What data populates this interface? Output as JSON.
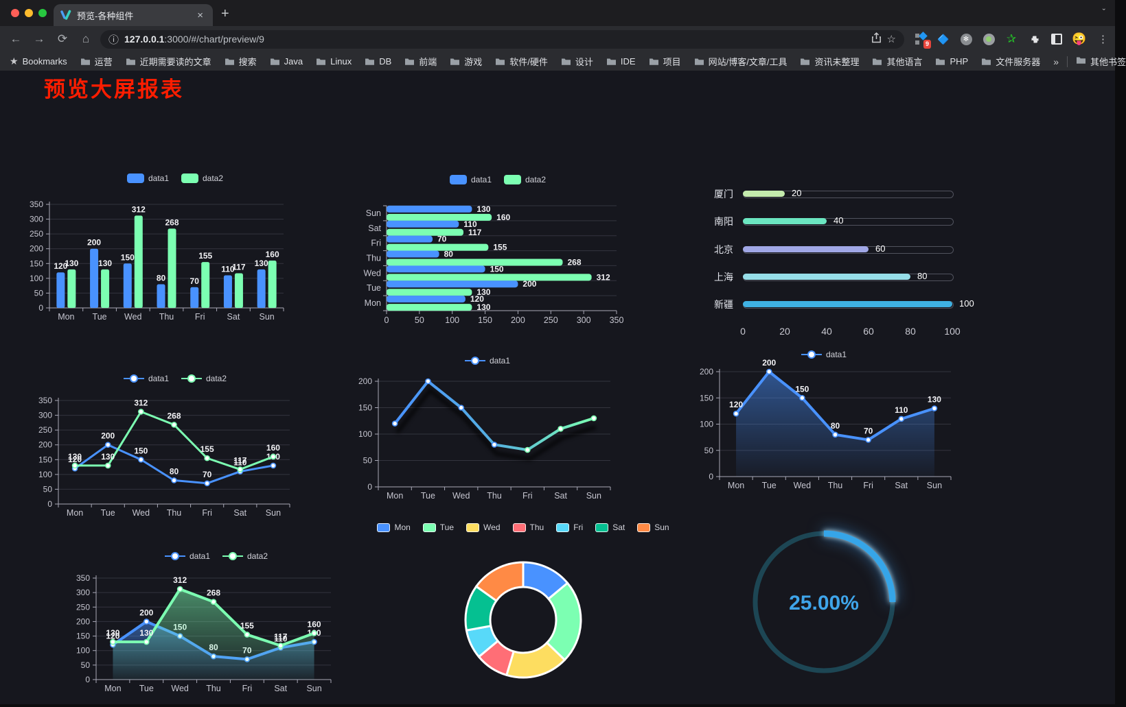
{
  "browser": {
    "tab": {
      "title": "预览-各种组件"
    },
    "url": {
      "host": "127.0.0.1",
      "path": ":3000/#/chart/preview/9"
    },
    "bookmarks_label": "Bookmarks",
    "bookmarks": [
      "运营",
      "近期需要读的文章",
      "搜索",
      "Java",
      "Linux",
      "DB",
      "前端",
      "游戏",
      "软件/硬件",
      "设计",
      "IDE",
      "项目",
      "网站/博客/文章/工具",
      "资讯未整理",
      "其他语言",
      "PHP",
      "文件服务器"
    ],
    "overflow": "»",
    "other_bookmarks": "其他书签",
    "extension_badge": "9"
  },
  "page": {
    "title": "预览大屏报表",
    "title_color": "#fd1d00",
    "background": "#16171e"
  },
  "chart_data": [
    {
      "id": "bar-vertical",
      "type": "bar",
      "categories": [
        "Mon",
        "Tue",
        "Wed",
        "Thu",
        "Fri",
        "Sat",
        "Sun"
      ],
      "series": [
        {
          "name": "data1",
          "color": "#4992ff",
          "values": [
            120,
            200,
            150,
            80,
            70,
            110,
            130
          ]
        },
        {
          "name": "data2",
          "color": "#7cffb2",
          "values": [
            130,
            130,
            312,
            268,
            155,
            117,
            160
          ]
        }
      ],
      "ylim": [
        0,
        350
      ],
      "yticks": [
        0,
        50,
        100,
        150,
        200,
        250,
        300,
        350
      ],
      "legend": [
        "data1",
        "data2"
      ],
      "value_labels": true,
      "grid": true,
      "legend_position": "top"
    },
    {
      "id": "bar-horizontal",
      "type": "hbar",
      "categories_top_to_bottom": [
        "Sun",
        "Sat",
        "Fri",
        "Thu",
        "Wed",
        "Tue",
        "Mon"
      ],
      "series": [
        {
          "name": "data1",
          "color": "#4992ff",
          "values_mon_to_sun": [
            120,
            200,
            150,
            80,
            70,
            110,
            130
          ]
        },
        {
          "name": "data2",
          "color": "#7cffb2",
          "values_mon_to_sun": [
            130,
            130,
            312,
            268,
            155,
            117,
            160
          ]
        }
      ],
      "xlim": [
        0,
        350
      ],
      "xticks": [
        0,
        50,
        100,
        150,
        200,
        250,
        300,
        350
      ],
      "legend": [
        "data1",
        "data2"
      ],
      "value_labels": true,
      "grid": true,
      "legend_position": "top"
    },
    {
      "id": "progress",
      "type": "progress",
      "rows": [
        {
          "label": "厦门",
          "value": 20,
          "color": "#c4ebad"
        },
        {
          "label": "南阳",
          "value": 40,
          "color": "#6be6c1"
        },
        {
          "label": "北京",
          "value": 60,
          "color": "#a0a7e6"
        },
        {
          "label": "上海",
          "value": 80,
          "color": "#96dee8"
        },
        {
          "label": "新疆",
          "value": 100,
          "color": "#3fb1e3"
        }
      ],
      "xlim": [
        0,
        100
      ],
      "xticks": [
        0,
        20,
        40,
        60,
        80,
        100
      ]
    },
    {
      "id": "line-dual",
      "type": "line",
      "categories": [
        "Mon",
        "Tue",
        "Wed",
        "Thu",
        "Fri",
        "Sat",
        "Sun"
      ],
      "series": [
        {
          "name": "data1",
          "color": "#4992ff",
          "values": [
            120,
            200,
            150,
            80,
            70,
            110,
            130
          ]
        },
        {
          "name": "data2",
          "color": "#7cffb2",
          "values": [
            130,
            130,
            312,
            268,
            155,
            117,
            160
          ]
        }
      ],
      "ylim": [
        0,
        350
      ],
      "yticks": [
        0,
        50,
        100,
        150,
        200,
        250,
        300,
        350
      ],
      "legend": [
        "data1",
        "data2"
      ],
      "value_labels": true,
      "markers": true,
      "legend_position": "top"
    },
    {
      "id": "line-gradient",
      "type": "line",
      "categories": [
        "Mon",
        "Tue",
        "Wed",
        "Thu",
        "Fri",
        "Sat",
        "Sun"
      ],
      "series": [
        {
          "name": "data1",
          "gradient": [
            "#4992ff",
            "#55b0e0",
            "#7cffb2"
          ],
          "color": "#4992ff",
          "values": [
            120,
            200,
            150,
            80,
            70,
            110,
            130
          ],
          "shadow": true
        }
      ],
      "ylim": [
        0,
        200
      ],
      "yticks": [
        0,
        50,
        100,
        150,
        200
      ],
      "legend": [
        "data1"
      ],
      "value_labels": false,
      "markers": true,
      "legend_position": "top"
    },
    {
      "id": "area-single",
      "type": "line",
      "categories": [
        "Mon",
        "Tue",
        "Wed",
        "Thu",
        "Fri",
        "Sat",
        "Sun"
      ],
      "series": [
        {
          "name": "data1",
          "color": "#4992ff",
          "values": [
            120,
            200,
            150,
            80,
            70,
            110,
            130
          ],
          "area": true
        }
      ],
      "ylim": [
        0,
        200
      ],
      "yticks": [
        0,
        50,
        100,
        150,
        200
      ],
      "legend": [
        "data1"
      ],
      "value_labels": true,
      "markers": true,
      "legend_position": "top"
    },
    {
      "id": "area-dual",
      "type": "line",
      "categories": [
        "Mon",
        "Tue",
        "Wed",
        "Thu",
        "Fri",
        "Sat",
        "Sun"
      ],
      "series": [
        {
          "name": "data1",
          "color": "#4992ff",
          "values": [
            120,
            200,
            150,
            80,
            70,
            110,
            130
          ],
          "area": true
        },
        {
          "name": "data2",
          "color": "#7cffb2",
          "values": [
            130,
            130,
            312,
            268,
            155,
            117,
            160
          ],
          "area": true
        }
      ],
      "ylim": [
        0,
        350
      ],
      "yticks": [
        0,
        50,
        100,
        150,
        200,
        250,
        300,
        350
      ],
      "legend": [
        "data1",
        "data2"
      ],
      "value_labels": true,
      "markers": true,
      "legend_position": "top"
    },
    {
      "id": "donut",
      "type": "pie",
      "categories": [
        "Mon",
        "Tue",
        "Wed",
        "Thu",
        "Fri",
        "Sat",
        "Sun"
      ],
      "values": [
        120,
        200,
        150,
        80,
        70,
        110,
        130
      ],
      "colors": [
        "#4992ff",
        "#7cffb2",
        "#fddd60",
        "#ff6e76",
        "#58d9f9",
        "#05c091",
        "#ff8a45"
      ],
      "legend_position": "top",
      "inner_radius_ratio": 0.57
    },
    {
      "id": "gauge",
      "type": "gauge",
      "value": 25,
      "label": "25.00%",
      "color": "#36a5e8",
      "track_color": "#1d4654",
      "text_color": "#3fa5ea"
    }
  ]
}
